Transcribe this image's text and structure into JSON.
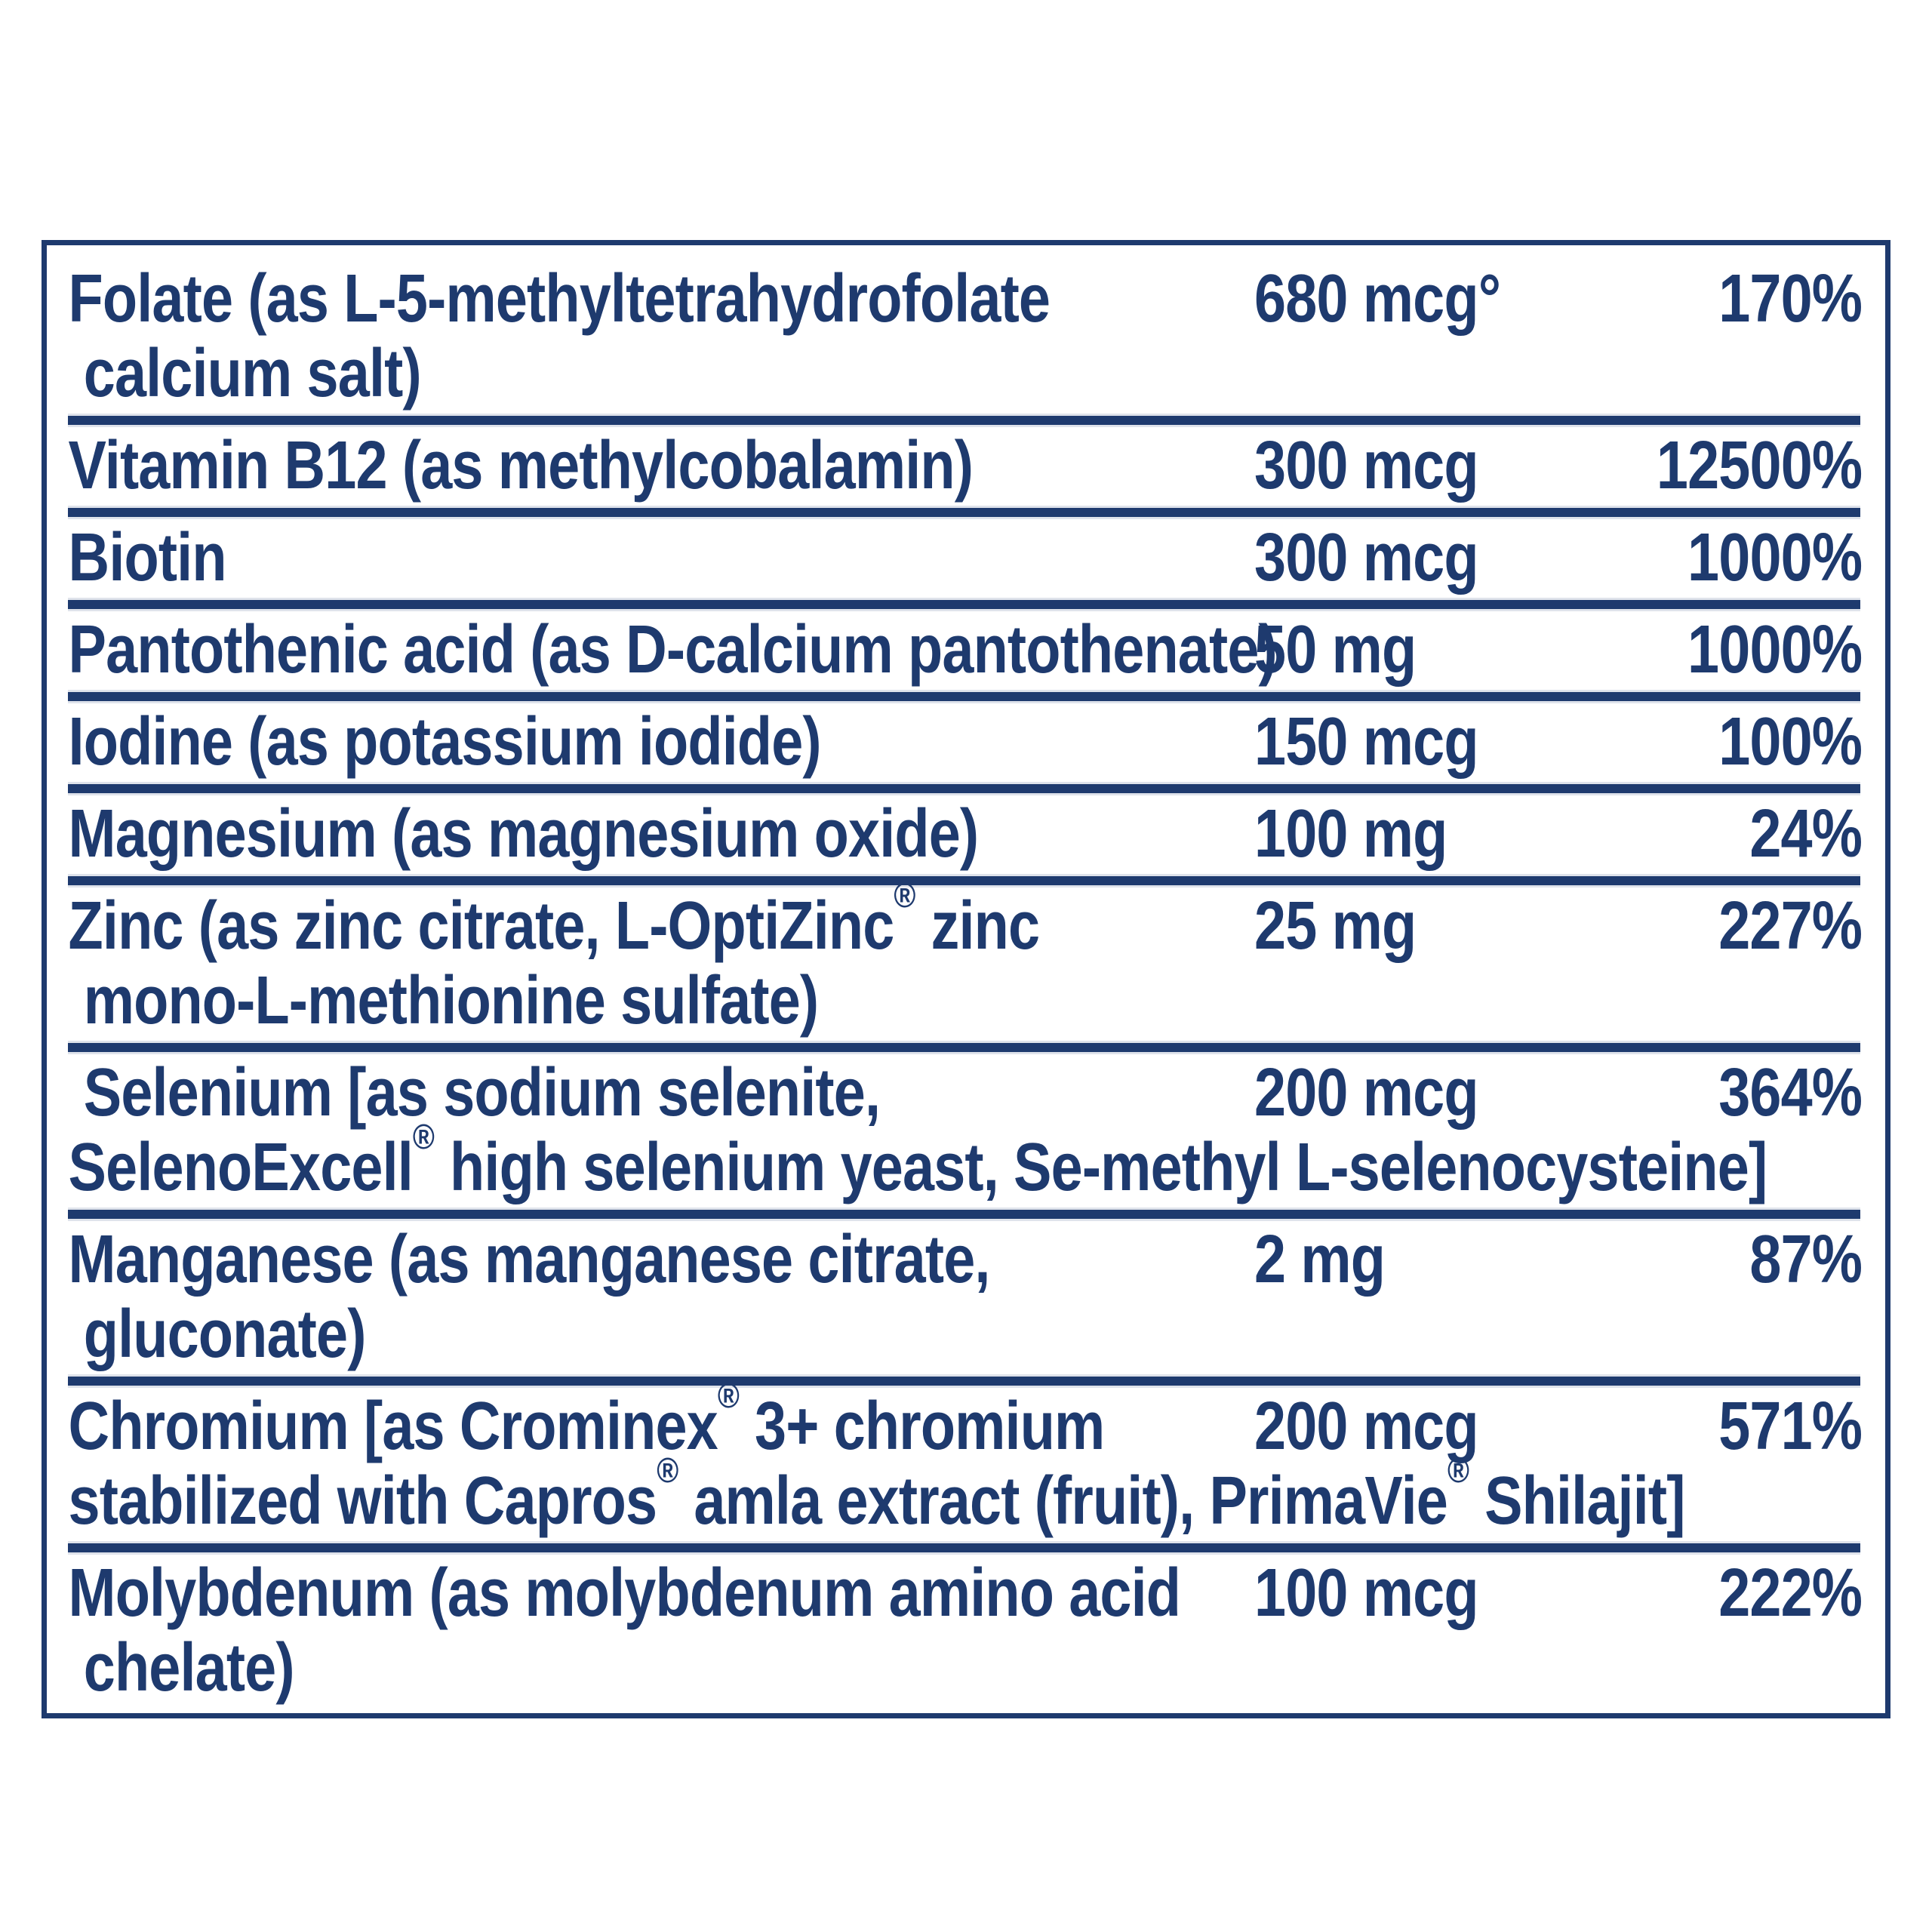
{
  "accent_color": "#1e3a6e",
  "background_color": "#ffffff",
  "table": {
    "rows": [
      {
        "name": "Folate (as L-5-methyltetrahydrofolate\n calcium salt)",
        "amount": "680 mcg°",
        "dv": "170%"
      },
      {
        "name": "Vitamin B12 (as methylcobalamin)",
        "amount": "300 mcg",
        "dv": "12500%"
      },
      {
        "name": "Biotin",
        "amount": "300 mcg",
        "dv": "1000%"
      },
      {
        "name": "Pantothenic acid (as D-calcium pantothenate)",
        "amount": "50 mg",
        "dv": "1000%"
      },
      {
        "name": "Iodine (as potassium iodide)",
        "amount": "150 mcg",
        "dv": "100%"
      },
      {
        "name": "Magnesium (as magnesium oxide)",
        "amount": "100 mg",
        "dv": "24%"
      },
      {
        "name": "Zinc (as zinc citrate, L-OptiZinc® zinc\n mono-L-methionine sulfate)",
        "amount": "25 mg",
        "dv": "227%"
      },
      {
        "name": " Selenium [as sodium selenite,\nSelenoExcell® high selenium yeast, Se-methyl L-selenocysteine]",
        "amount": "200 mcg",
        "dv": "364%"
      },
      {
        "name": "Manganese (as manganese citrate,\n gluconate)",
        "amount": "2 mg",
        "dv": "87%"
      },
      {
        "name": "Chromium [as Crominex® 3+ chromium\nstabilized with Capros® amla extract (fruit), PrimaVie® Shilajit]",
        "amount": "200 mcg",
        "dv": "571%"
      },
      {
        "name": "Molybdenum (as molybdenum amino acid\n chelate)",
        "amount": "100 mcg",
        "dv": "222%"
      }
    ]
  }
}
